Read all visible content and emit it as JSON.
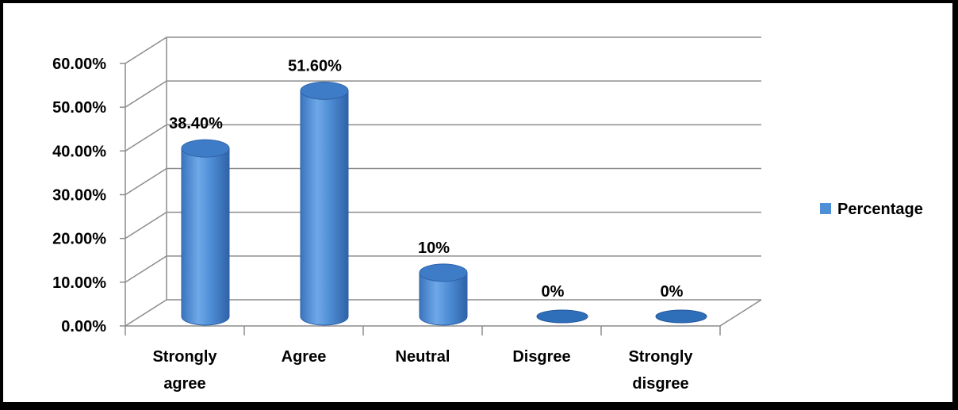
{
  "chart_data": {
    "type": "bar",
    "style": "3d-cylinder",
    "categories": [
      "Strongly agree",
      "Agree",
      "Neutral",
      "Disgree",
      "Strongly disgree"
    ],
    "category_lines": [
      [
        "Strongly",
        "agree"
      ],
      [
        "Agree"
      ],
      [
        "Neutral"
      ],
      [
        "Disgree"
      ],
      [
        "Strongly",
        "disgree"
      ]
    ],
    "series": [
      {
        "name": "Percentage",
        "values": [
          38.4,
          51.6,
          10,
          0,
          0
        ],
        "color": "#4F8FD6"
      }
    ],
    "data_labels": [
      "38.40%",
      "51.60%",
      "10%",
      "0%",
      "0%"
    ],
    "ylim": [
      0,
      60
    ],
    "y_ticks": [
      0,
      10,
      20,
      30,
      40,
      50,
      60
    ],
    "y_tick_labels": [
      "0.00%",
      "10.00%",
      "20.00%",
      "30.00%",
      "40.00%",
      "50.00%",
      "60.00%"
    ],
    "grid": true,
    "legend_position": "right"
  }
}
